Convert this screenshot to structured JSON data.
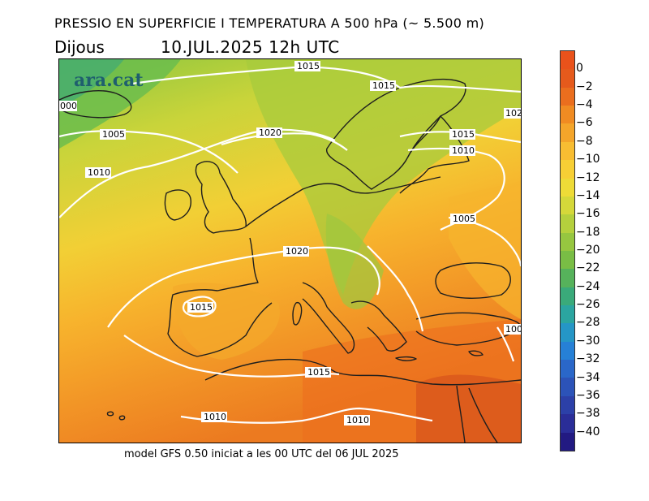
{
  "header": {
    "title": "PRESSIO EN SUPERFICIE I TEMPERATURA A 500 hPa (~ 5.500 m)",
    "day": "Dijous",
    "date": "10.JUL.2025 12h UTC"
  },
  "footer": {
    "text": "model GFS 0.50 iniciat a les 00 UTC del 06 JUL 2025"
  },
  "logo": {
    "text": "ara.cat"
  },
  "legend": {
    "labels": [
      "0",
      "−2",
      "−4",
      "−6",
      "−8",
      "−10",
      "−12",
      "−14",
      "−16",
      "−18",
      "−20",
      "−22",
      "−24",
      "−26",
      "−28",
      "−30",
      "−32",
      "−34",
      "−36",
      "−38",
      "−40"
    ],
    "colors": [
      "#e55a1c",
      "#ea6e1e",
      "#f08b22",
      "#f4a52a",
      "#f8bd32",
      "#f7cf35",
      "#eedb37",
      "#d5d83a",
      "#b5d03d",
      "#96c640",
      "#79bd45",
      "#56b25b",
      "#3aaa7a",
      "#2ba5a0",
      "#2596c6",
      "#2680d6",
      "#2a67c9",
      "#2c53b8",
      "#2c40a8",
      "#2a2d98",
      "#221a82"
    ]
  },
  "isobars": {
    "labels": [
      "1015",
      "1015",
      "1015",
      "1010",
      "1005",
      "1010",
      "1020",
      "1005",
      "1020",
      "1015",
      "1015",
      "1010",
      "1010",
      "000",
      "102",
      "100"
    ]
  },
  "map": {
    "colors": {
      "isobar": "#ffffff",
      "coast": "#1e1e1e",
      "hot": "#e55a1c",
      "cold": "#79bd45"
    }
  }
}
